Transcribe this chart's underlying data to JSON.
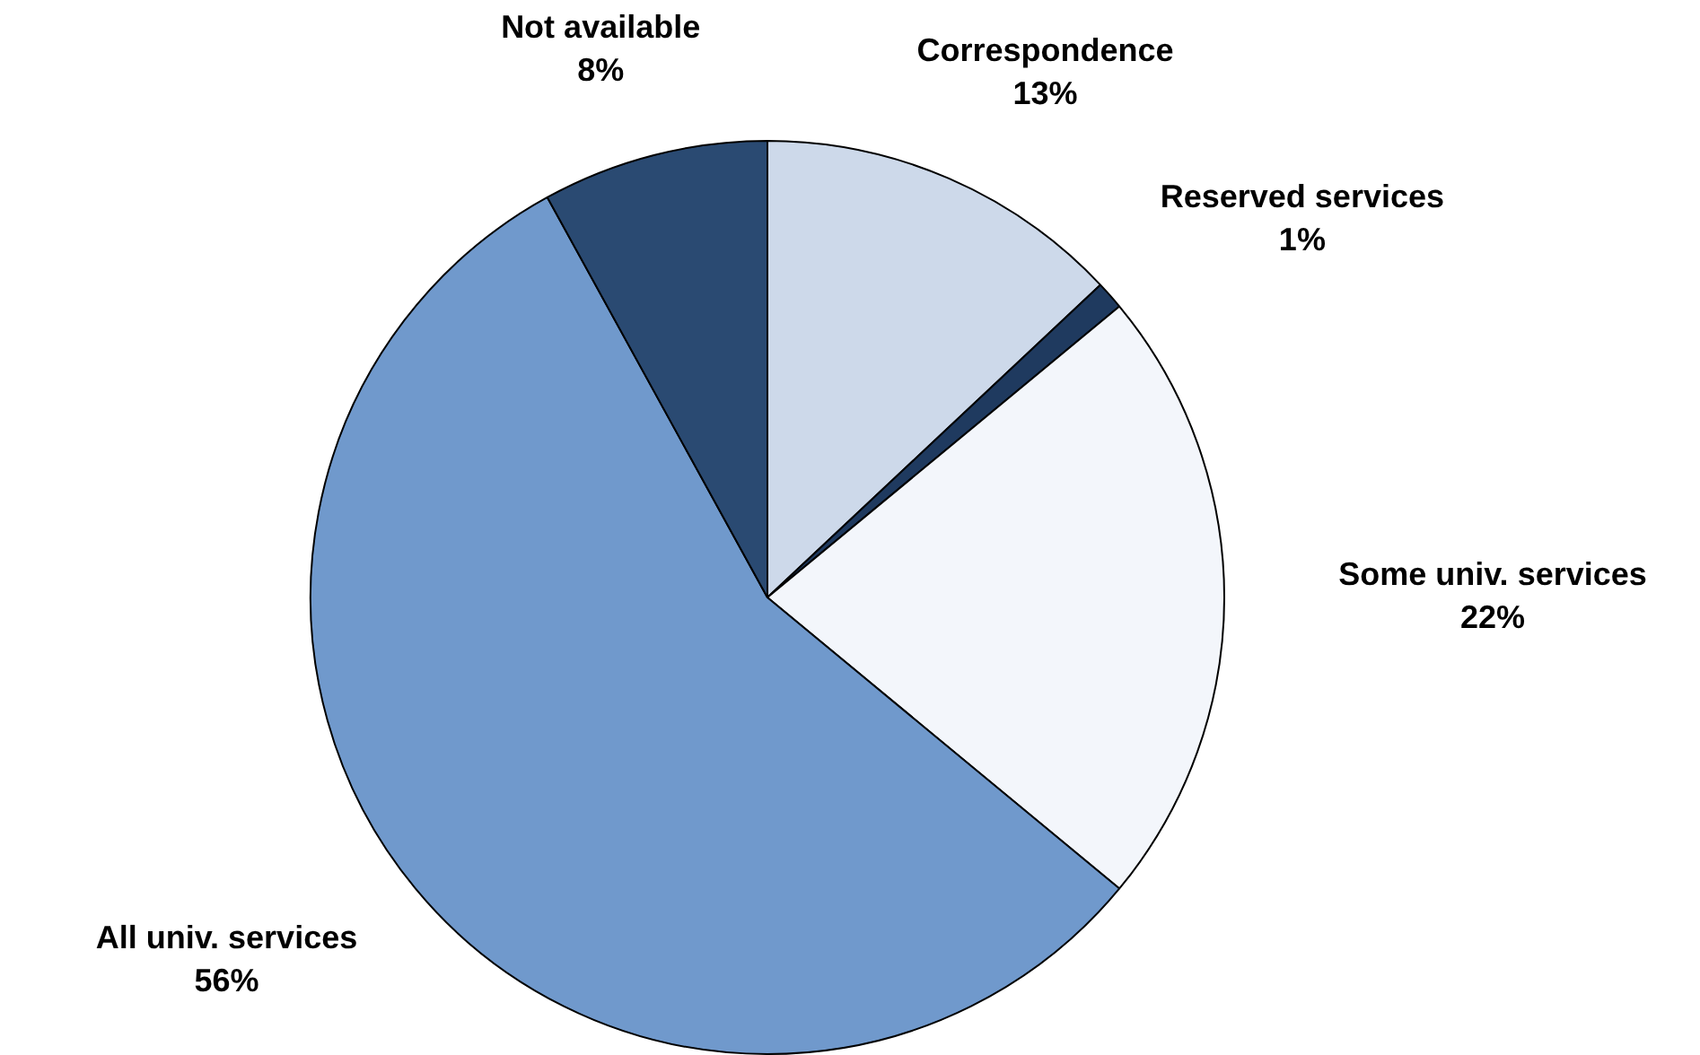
{
  "chart_data": {
    "type": "pie",
    "categories": [
      "Correspondence",
      "Reserved services",
      "Some univ. services",
      "All univ. services",
      "Not available"
    ],
    "values": [
      13,
      1,
      22,
      56,
      8
    ],
    "value_labels": [
      "13%",
      "1%",
      "22%",
      "56%",
      "8%"
    ],
    "colors": [
      "#cdd9ea",
      "#1f3a5f",
      "#f3f6fb",
      "#7099cc",
      "#2a4a72"
    ],
    "legend": false
  }
}
